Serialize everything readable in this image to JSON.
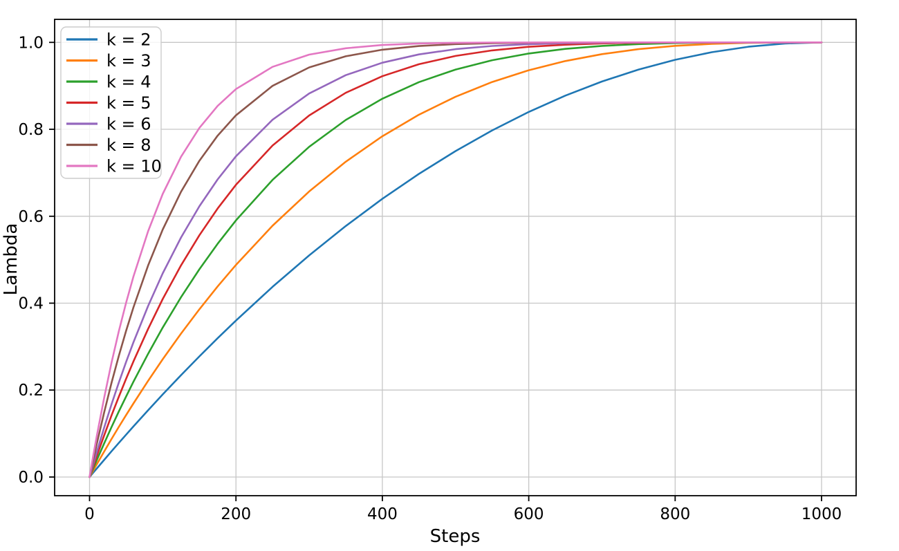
{
  "figure": {
    "background": "#ffffff"
  },
  "chart_data": {
    "type": "line",
    "title": "",
    "xlabel": "Steps",
    "ylabel": "Lambda",
    "xlim": [
      -47.7,
      1047.2
    ],
    "ylim": [
      -0.043,
      1.053
    ],
    "grid": true,
    "grid_color": "#c6c6c6",
    "spine_color": "#000000",
    "x_ticks": [
      0,
      200,
      400,
      600,
      800,
      1000
    ],
    "x_tick_labels": [
      "0",
      "200",
      "400",
      "600",
      "800",
      "1000"
    ],
    "y_ticks": [
      0.0,
      0.2,
      0.4,
      0.6,
      0.8,
      1.0
    ],
    "y_tick_labels": [
      "0.0",
      "0.2",
      "0.4",
      "0.6",
      "0.8",
      "1.0"
    ],
    "legend": {
      "location": "upper left"
    },
    "x": [
      0,
      5,
      10,
      20,
      30,
      40,
      50,
      60,
      80,
      100,
      125,
      150,
      175,
      200,
      250,
      300,
      350,
      400,
      450,
      500,
      550,
      600,
      650,
      700,
      750,
      800,
      850,
      900,
      950,
      1000
    ],
    "series": [
      {
        "name": "k = 2",
        "color": "#1f77b4",
        "values": [
          0,
          0.01,
          0.0199,
          0.0396,
          0.0591,
          0.0784,
          0.0975,
          0.1164,
          0.1536,
          0.19,
          0.2344,
          0.2775,
          0.3194,
          0.36,
          0.4375,
          0.51,
          0.5775,
          0.64,
          0.6975,
          0.75,
          0.7975,
          0.84,
          0.8775,
          0.91,
          0.9375,
          0.96,
          0.9775,
          0.99,
          0.9975,
          1.0
        ]
      },
      {
        "name": "k = 3",
        "color": "#ff7f0e",
        "values": [
          0,
          0.0149,
          0.0297,
          0.0588,
          0.0873,
          0.1153,
          0.1426,
          0.1694,
          0.2213,
          0.271,
          0.3301,
          0.3859,
          0.4385,
          0.488,
          0.5781,
          0.657,
          0.7254,
          0.784,
          0.8336,
          0.875,
          0.9089,
          0.936,
          0.9571,
          0.973,
          0.9844,
          0.992,
          0.9966,
          0.999,
          0.9999,
          1.0
        ]
      },
      {
        "name": "k = 4",
        "color": "#2ca02c",
        "values": [
          0,
          0.0199,
          0.0394,
          0.0776,
          0.1147,
          0.1507,
          0.1855,
          0.2193,
          0.2836,
          0.3439,
          0.4138,
          0.478,
          0.5367,
          0.5904,
          0.6836,
          0.7599,
          0.8215,
          0.8704,
          0.9085,
          0.9375,
          0.959,
          0.9744,
          0.985,
          0.9919,
          0.9961,
          0.9984,
          0.9995,
          0.9999,
          1.0,
          1.0
        ]
      },
      {
        "name": "k = 5",
        "color": "#d62728",
        "values": [
          0,
          0.0248,
          0.049,
          0.0961,
          0.1413,
          0.1846,
          0.2262,
          0.2661,
          0.3409,
          0.4095,
          0.4871,
          0.5563,
          0.6178,
          0.6723,
          0.7627,
          0.8319,
          0.884,
          0.9222,
          0.9497,
          0.9688,
          0.9815,
          0.9898,
          0.9947,
          0.9976,
          0.999,
          0.9997,
          0.9999,
          1.0,
          1.0,
          1.0
        ]
      },
      {
        "name": "k = 6",
        "color": "#9467bd",
        "values": [
          0,
          0.0296,
          0.0585,
          0.1142,
          0.167,
          0.2172,
          0.2649,
          0.3101,
          0.3936,
          0.4686,
          0.5512,
          0.6229,
          0.6847,
          0.7379,
          0.822,
          0.8824,
          0.9246,
          0.9533,
          0.9723,
          0.9844,
          0.9917,
          0.9959,
          0.9982,
          0.9993,
          0.9998,
          0.9999,
          1.0,
          1.0,
          1.0,
          1.0
        ]
      },
      {
        "name": "k = 8",
        "color": "#8c564b",
        "values": [
          0,
          0.0393,
          0.0773,
          0.1492,
          0.2163,
          0.2786,
          0.3366,
          0.3904,
          0.4868,
          0.5695,
          0.6564,
          0.7275,
          0.7854,
          0.8322,
          0.8999,
          0.9424,
          0.9681,
          0.9832,
          0.9916,
          0.9961,
          0.9983,
          0.9993,
          0.9998,
          0.9999,
          1.0,
          1.0,
          1.0,
          1.0,
          1.0,
          1.0
        ]
      },
      {
        "name": "k = 10",
        "color": "#e377c2",
        "values": [
          0,
          0.0489,
          0.0956,
          0.1829,
          0.2626,
          0.3352,
          0.4013,
          0.4614,
          0.5656,
          0.6513,
          0.7369,
          0.8031,
          0.8539,
          0.8926,
          0.9437,
          0.9718,
          0.9865,
          0.994,
          0.9975,
          0.999,
          0.9997,
          0.9999,
          1.0,
          1.0,
          1.0,
          1.0,
          1.0,
          1.0,
          1.0,
          1.0
        ]
      }
    ]
  }
}
